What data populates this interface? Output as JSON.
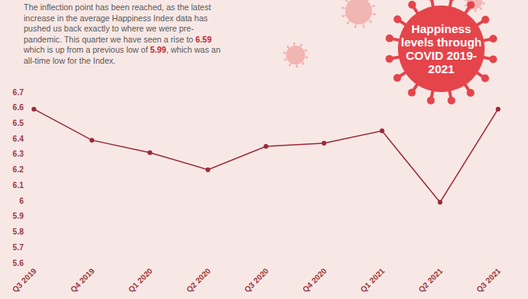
{
  "chart_data": {
    "type": "line",
    "title": "Happiness levels through COVID 2019-2021",
    "annotation": [
      [
        "The inflection point has been reached, as the latest"
      ],
      [
        "increase in the average Happiness Index data has"
      ],
      [
        "pushed us back exactly to where we were pre-"
      ],
      [
        "pandemic. This quarter we have seen a rise to ",
        "6.59"
      ],
      [
        "which is up from a previous low of ",
        "5.99",
        ", which was an"
      ],
      [
        "all-time low for the Index."
      ]
    ],
    "categories": [
      "Q3 2019",
      "Q4 2019",
      "Q1 2020",
      "Q2 2020",
      "Q3 2020",
      "Q4 2020",
      "Q1 2021",
      "Q2 2021",
      "Q3 2021"
    ],
    "values": [
      6.59,
      6.39,
      6.31,
      6.2,
      6.35,
      6.37,
      6.45,
      5.99,
      6.59
    ],
    "color": "#9b2a3a",
    "marker": "circle",
    "ylim": [
      5.6,
      6.7
    ],
    "yticks": [
      5.6,
      5.7,
      5.8,
      5.9,
      6,
      6.1,
      6.2,
      6.3,
      6.4,
      6.5,
      6.6,
      6.7
    ],
    "grid": false
  }
}
